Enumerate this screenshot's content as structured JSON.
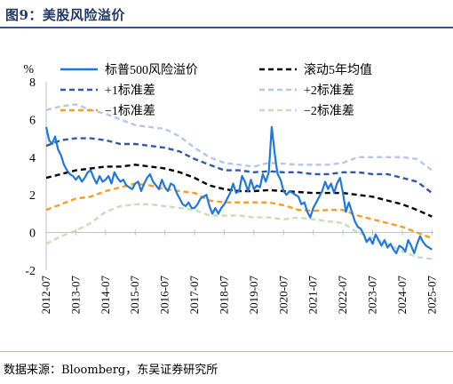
{
  "header": {
    "title": "图9：美股风险溢价"
  },
  "footer": {
    "source": "数据来源：Bloomberg，东吴证券研究所"
  },
  "chart_data": {
    "type": "line",
    "title": "图9：美股风险溢价",
    "ylabel": "%",
    "ylim": [
      -2,
      8
    ],
    "yticks": [
      -2,
      0,
      2,
      4,
      6,
      8
    ],
    "xlim": [
      2012.5,
      2025.55
    ],
    "xtick_labels": [
      "2012-07",
      "2013-07",
      "2014-07",
      "2015-07",
      "2016-07",
      "2017-07",
      "2018-07",
      "2019-07",
      "2020-07",
      "2021-07",
      "2022-07",
      "2023-07",
      "2024-07",
      "2025-07"
    ],
    "legend": {
      "placement": "top",
      "columns": 2
    },
    "series": [
      {
        "name": "标普500风险溢价",
        "color": "#1f77e0",
        "style": "solid",
        "x": [
          2012.5,
          2012.6,
          2012.7,
          2012.8,
          2012.9,
          2013.0,
          2013.1,
          2013.2,
          2013.3,
          2013.4,
          2013.5,
          2013.6,
          2013.7,
          2013.8,
          2013.9,
          2014.0,
          2014.1,
          2014.2,
          2014.3,
          2014.4,
          2014.5,
          2014.6,
          2014.7,
          2014.8,
          2014.9,
          2015.0,
          2015.1,
          2015.2,
          2015.3,
          2015.4,
          2015.5,
          2015.6,
          2015.7,
          2015.8,
          2015.9,
          2016.0,
          2016.1,
          2016.2,
          2016.3,
          2016.4,
          2016.5,
          2016.6,
          2016.7,
          2016.8,
          2016.9,
          2017.0,
          2017.1,
          2017.2,
          2017.3,
          2017.4,
          2017.5,
          2017.6,
          2017.7,
          2017.8,
          2017.9,
          2018.0,
          2018.1,
          2018.2,
          2018.3,
          2018.4,
          2018.5,
          2018.6,
          2018.7,
          2018.8,
          2018.9,
          2019.0,
          2019.1,
          2019.2,
          2019.3,
          2019.4,
          2019.5,
          2019.6,
          2019.7,
          2019.8,
          2019.9,
          2020.0,
          2020.1,
          2020.2,
          2020.25,
          2020.3,
          2020.4,
          2020.5,
          2020.6,
          2020.7,
          2020.8,
          2020.9,
          2021.0,
          2021.1,
          2021.2,
          2021.3,
          2021.4,
          2021.5,
          2021.6,
          2021.7,
          2021.8,
          2021.9,
          2022.0,
          2022.1,
          2022.2,
          2022.3,
          2022.4,
          2022.5,
          2022.6,
          2022.7,
          2022.8,
          2022.9,
          2023.0,
          2023.1,
          2023.2,
          2023.3,
          2023.4,
          2023.5,
          2023.6,
          2023.7,
          2023.8,
          2023.9,
          2024.0,
          2024.1,
          2024.2,
          2024.3,
          2024.4,
          2024.5,
          2024.6,
          2024.7,
          2024.8,
          2024.9,
          2025.0,
          2025.1,
          2025.2,
          2025.3,
          2025.4,
          2025.5
        ],
        "y": [
          5.6,
          4.9,
          4.7,
          5.1,
          4.4,
          4.1,
          3.6,
          3.3,
          3.1,
          3.0,
          2.8,
          3.0,
          2.7,
          2.9,
          3.2,
          3.3,
          2.9,
          2.6,
          3.0,
          2.7,
          2.8,
          3.0,
          2.6,
          3.2,
          2.9,
          2.7,
          2.8,
          2.5,
          2.4,
          2.3,
          2.6,
          2.7,
          2.2,
          2.6,
          2.9,
          3.1,
          2.7,
          2.5,
          2.3,
          2.8,
          2.4,
          2.2,
          2.6,
          2.5,
          2.1,
          1.8,
          1.5,
          1.4,
          1.6,
          1.3,
          1.3,
          1.5,
          1.8,
          1.9,
          2.0,
          1.4,
          1.0,
          1.3,
          1.0,
          1.3,
          1.5,
          1.8,
          2.1,
          2.6,
          2.1,
          2.2,
          3.0,
          2.7,
          2.2,
          2.8,
          2.3,
          2.5,
          2.4,
          3.1,
          2.7,
          3.2,
          5.6,
          4.2,
          3.6,
          3.1,
          2.8,
          2.2,
          2.0,
          2.2,
          2.1,
          2.0,
          1.9,
          1.5,
          1.6,
          1.1,
          0.8,
          1.3,
          1.6,
          1.9,
          2.2,
          2.7,
          2.3,
          2.6,
          2.1,
          2.6,
          2.9,
          2.1,
          1.1,
          1.6,
          1.1,
          0.6,
          0.3,
          0.2,
          -0.1,
          -0.5,
          -0.3,
          -0.6,
          -0.1,
          -0.4,
          -0.7,
          -0.4,
          -0.8,
          -0.6,
          -0.9,
          -1.1,
          -0.7,
          -0.8,
          -1.0,
          -0.4,
          -0.7,
          -1.1,
          -0.6,
          -0.2,
          -0.5,
          -0.7,
          -0.8,
          -0.9
        ]
      },
      {
        "name": "滚动5年均值",
        "color": "#000000",
        "style": "dashed",
        "x": [
          2012.5,
          2013.0,
          2013.5,
          2014.0,
          2014.5,
          2015.0,
          2015.5,
          2016.0,
          2016.5,
          2017.0,
          2017.5,
          2018.0,
          2018.5,
          2019.0,
          2019.5,
          2020.0,
          2020.5,
          2021.0,
          2021.5,
          2022.0,
          2022.5,
          2023.0,
          2023.5,
          2024.0,
          2024.5,
          2025.0,
          2025.5
        ],
        "y": [
          2.9,
          3.1,
          3.3,
          3.4,
          3.5,
          3.5,
          3.6,
          3.5,
          3.4,
          3.2,
          2.9,
          2.5,
          2.3,
          2.2,
          2.2,
          2.25,
          2.2,
          2.15,
          2.1,
          2.1,
          2.1,
          2.0,
          1.9,
          1.7,
          1.5,
          1.2,
          0.85
        ]
      },
      {
        "name": "+1标准差",
        "color": "#2f5aa8",
        "style": "dashed",
        "x": [
          2012.5,
          2013.0,
          2013.5,
          2014.0,
          2014.5,
          2015.0,
          2015.5,
          2016.0,
          2016.5,
          2017.0,
          2017.5,
          2018.0,
          2018.5,
          2019.0,
          2019.5,
          2020.0,
          2020.5,
          2021.0,
          2021.5,
          2022.0,
          2022.5,
          2023.0,
          2023.5,
          2024.0,
          2024.5,
          2025.0,
          2025.5
        ],
        "y": [
          4.6,
          4.9,
          5.0,
          5.0,
          4.9,
          4.7,
          4.7,
          4.6,
          4.5,
          4.3,
          3.9,
          3.6,
          3.3,
          3.3,
          3.2,
          3.25,
          3.2,
          3.2,
          3.1,
          3.1,
          3.2,
          3.2,
          3.1,
          3.1,
          2.9,
          2.7,
          2.1
        ]
      },
      {
        "name": "+2标准差",
        "color": "#b4c7e7",
        "style": "dashed",
        "x": [
          2012.5,
          2013.0,
          2013.5,
          2014.0,
          2014.5,
          2015.0,
          2015.5,
          2016.0,
          2016.5,
          2017.0,
          2017.5,
          2018.0,
          2018.5,
          2019.0,
          2019.5,
          2020.0,
          2020.5,
          2021.0,
          2021.5,
          2022.0,
          2022.5,
          2023.0,
          2023.5,
          2024.0,
          2024.5,
          2025.0,
          2025.5
        ],
        "y": [
          6.5,
          6.7,
          6.8,
          6.5,
          6.3,
          6.0,
          5.7,
          5.6,
          5.5,
          5.1,
          4.5,
          4.0,
          3.7,
          3.6,
          3.5,
          3.7,
          3.65,
          3.6,
          3.6,
          3.6,
          3.7,
          4.0,
          4.0,
          4.0,
          4.0,
          3.9,
          3.3
        ]
      },
      {
        "name": "−1标准差",
        "color": "#ff9a1f",
        "style": "dashed",
        "x": [
          2012.5,
          2013.0,
          2013.5,
          2014.0,
          2014.5,
          2015.0,
          2015.5,
          2016.0,
          2016.5,
          2017.0,
          2017.5,
          2018.0,
          2018.5,
          2019.0,
          2019.5,
          2020.0,
          2020.5,
          2021.0,
          2021.5,
          2022.0,
          2022.5,
          2023.0,
          2023.5,
          2024.0,
          2024.5,
          2025.0,
          2025.5
        ],
        "y": [
          1.2,
          1.5,
          1.8,
          1.9,
          2.2,
          2.4,
          2.6,
          2.5,
          2.3,
          2.2,
          2.1,
          1.7,
          1.6,
          1.6,
          1.6,
          1.6,
          1.45,
          1.2,
          1.15,
          1.2,
          1.2,
          0.9,
          0.7,
          0.5,
          0.3,
          0.0,
          -0.3
        ]
      },
      {
        "name": "−2标准差",
        "color": "#c5e0b4",
        "style": "dashed",
        "x": [
          2012.5,
          2013.0,
          2013.5,
          2014.0,
          2014.5,
          2015.0,
          2015.5,
          2016.0,
          2016.5,
          2017.0,
          2017.5,
          2018.0,
          2018.5,
          2019.0,
          2019.5,
          2020.0,
          2020.5,
          2021.0,
          2021.5,
          2022.0,
          2022.5,
          2023.0,
          2023.5,
          2024.0,
          2024.5,
          2025.0,
          2025.5
        ],
        "y": [
          -0.6,
          -0.2,
          0.1,
          0.5,
          1.1,
          1.4,
          1.5,
          1.5,
          1.4,
          1.3,
          1.2,
          0.9,
          0.9,
          0.9,
          0.8,
          0.8,
          0.7,
          0.8,
          0.7,
          0.6,
          0.5,
          0.0,
          -0.3,
          -0.6,
          -1.0,
          -1.3,
          -1.4
        ]
      }
    ]
  }
}
